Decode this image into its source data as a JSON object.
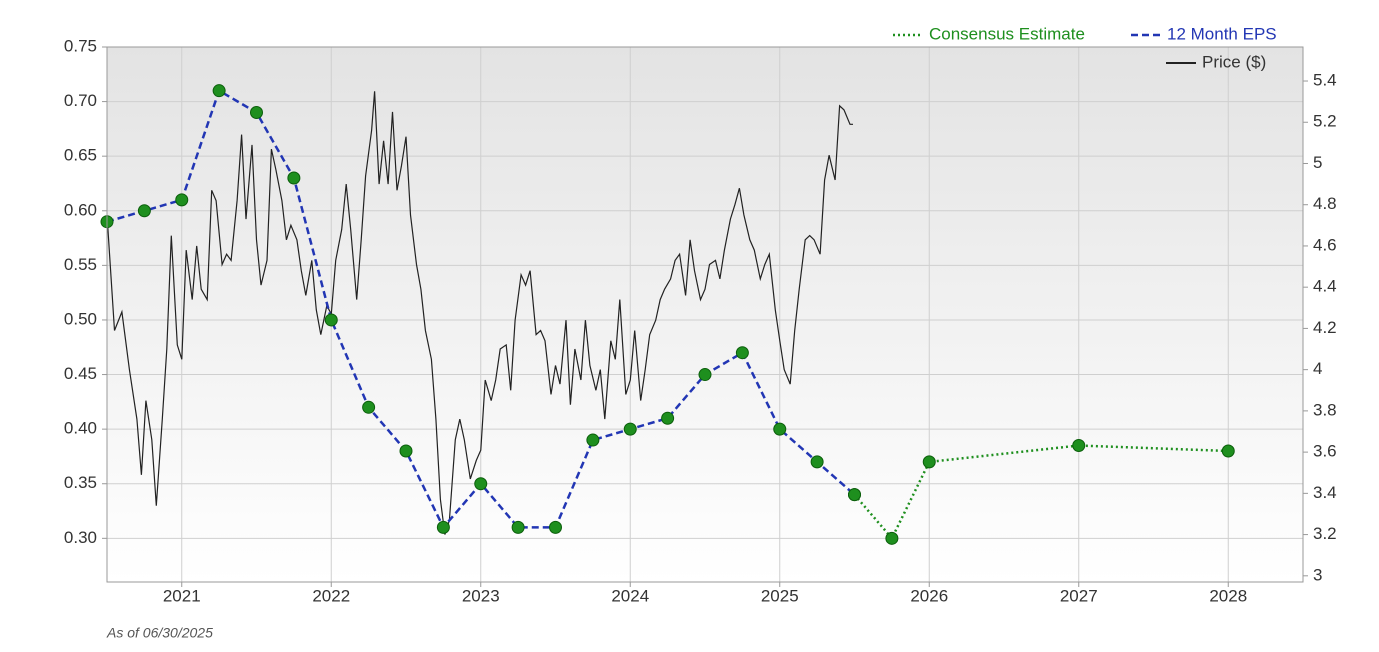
{
  "chart_data": {
    "type": "line",
    "footnote": "As of 06/30/2025",
    "xlim": [
      2020.5,
      2028.5
    ],
    "xticks": [
      2021,
      2022,
      2023,
      2024,
      2025,
      2026,
      2027,
      2028
    ],
    "ylim": [
      0.26,
      0.75
    ],
    "yticks": [
      {
        "value": 0.3,
        "label": "0.30"
      },
      0.35,
      {
        "value": 0.4,
        "label": "0.40"
      },
      0.45,
      {
        "value": 0.5,
        "label": "0.50"
      },
      0.55,
      {
        "value": 0.6,
        "label": "0.60"
      },
      0.65,
      {
        "value": 0.7,
        "label": "0.70"
      },
      0.75
    ],
    "y2lim": [
      2.97,
      5.565
    ],
    "y2ticks": [
      3,
      3.2,
      3.4,
      3.6,
      3.8,
      4,
      4.2,
      4.4,
      4.6,
      4.8,
      5,
      5.2,
      5.4
    ],
    "grid": true,
    "legend": "top-right",
    "series": [
      {
        "name": "Consensus Estimate",
        "color": "#1e8f1e",
        "style": "dotted",
        "markers": true,
        "x": [
          2025.5,
          2025.75,
          2026,
          2027,
          2028
        ],
        "values": [
          0.34,
          0.3,
          0.37,
          0.385,
          0.38
        ]
      },
      {
        "name": "12 Month EPS",
        "color": "#2236b4",
        "style": "dashed",
        "markers": true,
        "marker_color": "#1e8f1e",
        "x": [
          2020.5,
          2020.75,
          2021,
          2021.25,
          2021.5,
          2021.75,
          2022,
          2022.25,
          2022.5,
          2022.75,
          2023,
          2023.25,
          2023.5,
          2023.75,
          2024,
          2024.25,
          2024.5,
          2024.75,
          2025,
          2025.25,
          2025.5
        ],
        "values": [
          0.59,
          0.6,
          0.61,
          0.71,
          0.69,
          0.63,
          0.5,
          0.42,
          0.38,
          0.31,
          0.35,
          0.31,
          0.31,
          0.39,
          0.4,
          0.41,
          0.45,
          0.47,
          0.4,
          0.37,
          0.34
        ]
      },
      {
        "name": "Price ($)",
        "color": "#222222",
        "style": "solid",
        "axis": "y2",
        "x": [
          2020.5,
          2020.55,
          2020.6,
          2020.65,
          2020.7,
          2020.73,
          2020.76,
          2020.8,
          2020.83,
          2020.87,
          2020.9,
          2020.93,
          2020.97,
          2021.0,
          2021.03,
          2021.07,
          2021.1,
          2021.13,
          2021.17,
          2021.2,
          2021.23,
          2021.27,
          2021.3,
          2021.33,
          2021.37,
          2021.4,
          2021.43,
          2021.47,
          2021.5,
          2021.53,
          2021.57,
          2021.6,
          2021.63,
          2021.67,
          2021.7,
          2021.73,
          2021.77,
          2021.8,
          2021.83,
          2021.87,
          2021.9,
          2021.93,
          2021.97,
          2022.0,
          2022.03,
          2022.07,
          2022.1,
          2022.13,
          2022.17,
          2022.2,
          2022.23,
          2022.27,
          2022.29,
          2022.32,
          2022.35,
          2022.38,
          2022.41,
          2022.44,
          2022.47,
          2022.5,
          2022.53,
          2022.57,
          2022.6,
          2022.63,
          2022.67,
          2022.7,
          2022.73,
          2022.76,
          2022.79,
          2022.83,
          2022.86,
          2022.89,
          2022.93,
          2022.97,
          2023.0,
          2023.03,
          2023.07,
          2023.1,
          2023.13,
          2023.17,
          2023.2,
          2023.23,
          2023.27,
          2023.3,
          2023.33,
          2023.37,
          2023.4,
          2023.43,
          2023.47,
          2023.5,
          2023.53,
          2023.57,
          2023.6,
          2023.63,
          2023.67,
          2023.7,
          2023.73,
          2023.77,
          2023.8,
          2023.83,
          2023.87,
          2023.9,
          2023.93,
          2023.97,
          2024.0,
          2024.03,
          2024.07,
          2024.1,
          2024.13,
          2024.17,
          2024.2,
          2024.23,
          2024.27,
          2024.3,
          2024.33,
          2024.37,
          2024.4,
          2024.43,
          2024.47,
          2024.5,
          2024.53,
          2024.57,
          2024.6,
          2024.63,
          2024.67,
          2024.7,
          2024.73,
          2024.76,
          2024.8,
          2024.83,
          2024.87,
          2024.9,
          2024.93,
          2024.97,
          2025.0,
          2025.03,
          2025.07,
          2025.1,
          2025.13,
          2025.17,
          2025.2,
          2025.23,
          2025.27,
          2025.3,
          2025.33,
          2025.37,
          2025.4,
          2025.43,
          2025.47,
          2025.49
        ],
        "values": [
          4.75,
          4.19,
          4.28,
          4.0,
          3.76,
          3.49,
          3.85,
          3.66,
          3.34,
          3.76,
          4.1,
          4.65,
          4.12,
          4.05,
          4.58,
          4.34,
          4.6,
          4.39,
          4.34,
          4.87,
          4.82,
          4.51,
          4.56,
          4.53,
          4.82,
          5.14,
          4.73,
          5.09,
          4.63,
          4.41,
          4.53,
          5.07,
          4.97,
          4.82,
          4.63,
          4.7,
          4.63,
          4.48,
          4.36,
          4.53,
          4.29,
          4.17,
          4.31,
          4.27,
          4.53,
          4.68,
          4.9,
          4.68,
          4.34,
          4.63,
          4.94,
          5.16,
          5.35,
          4.9,
          5.11,
          4.9,
          5.25,
          4.87,
          4.99,
          5.13,
          4.75,
          4.51,
          4.39,
          4.19,
          4.05,
          3.76,
          3.37,
          3.2,
          3.27,
          3.66,
          3.76,
          3.66,
          3.47,
          3.56,
          3.61,
          3.95,
          3.85,
          3.95,
          4.1,
          4.12,
          3.9,
          4.24,
          4.46,
          4.41,
          4.48,
          4.17,
          4.19,
          4.14,
          3.88,
          4.02,
          3.93,
          4.24,
          3.83,
          4.1,
          3.95,
          4.24,
          4.02,
          3.9,
          4.0,
          3.76,
          4.14,
          4.05,
          4.34,
          3.88,
          3.95,
          4.19,
          3.85,
          4.0,
          4.17,
          4.24,
          4.34,
          4.39,
          4.44,
          4.53,
          4.56,
          4.36,
          4.63,
          4.48,
          4.34,
          4.39,
          4.51,
          4.53,
          4.44,
          4.58,
          4.73,
          4.8,
          4.88,
          4.75,
          4.63,
          4.58,
          4.44,
          4.51,
          4.56,
          4.29,
          4.14,
          4.0,
          3.93,
          4.19,
          4.39,
          4.63,
          4.65,
          4.63,
          4.56,
          4.92,
          5.04,
          4.92,
          5.28,
          5.26,
          5.19,
          5.19
        ]
      }
    ]
  }
}
